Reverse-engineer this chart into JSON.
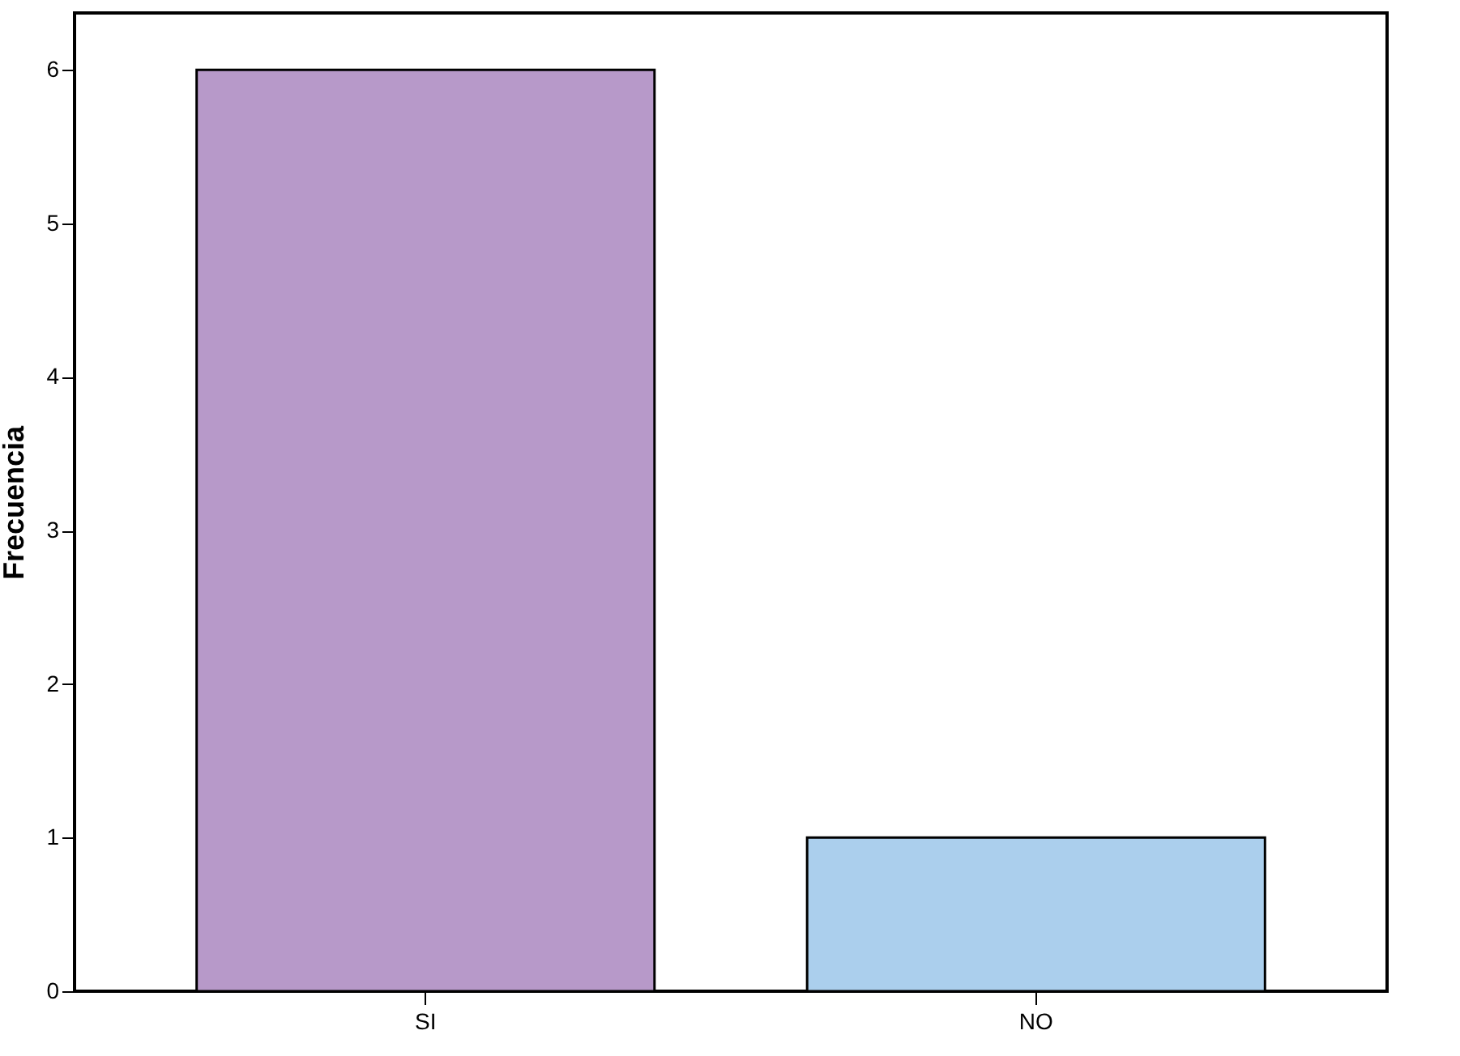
{
  "chart_data": {
    "type": "bar",
    "ylabel": "Frecuencia",
    "categories": [
      "SI",
      "NO"
    ],
    "values": [
      6,
      1
    ],
    "colors": [
      "#b799c9",
      "#abcfed"
    ],
    "ylim": [
      0,
      6.37
    ],
    "yticks": [
      0,
      1,
      2,
      3,
      4,
      5,
      6
    ],
    "grid": false
  }
}
